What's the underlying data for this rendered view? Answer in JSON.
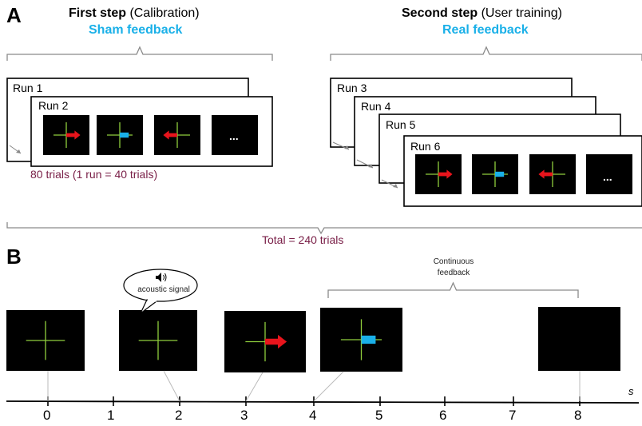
{
  "panelA": {
    "letter": "A",
    "step1": {
      "title_bold": "First step",
      "title_rest": " (Calibration)",
      "feedback": "Sham feedback"
    },
    "step2": {
      "title_bold": "Second step",
      "title_rest": " (User training)",
      "feedback": "Real feedback"
    },
    "runs_left": [
      "Run 1",
      "Run 2"
    ],
    "runs_right": [
      "Run 3",
      "Run 4",
      "Run 5",
      "Run 6"
    ],
    "trials_note": "80 trials (1 run = 40 trials)",
    "total": "Total = 240 trials",
    "ellipsis": "..."
  },
  "panelB": {
    "letter": "B",
    "bubble_text": "acoustic signal",
    "continuous_feedback": [
      "Continuous",
      "feedback"
    ],
    "axis_unit": "s",
    "ticks": [
      "0",
      "1",
      "2",
      "3",
      "4",
      "5",
      "6",
      "7",
      "8"
    ]
  },
  "colors": {
    "feedback_blue": "#1ab0e8",
    "arrow_red": "#e8141c",
    "cross_green": "#8fce3c",
    "maroon_text": "#7a2048",
    "screen_black": "#000000"
  }
}
